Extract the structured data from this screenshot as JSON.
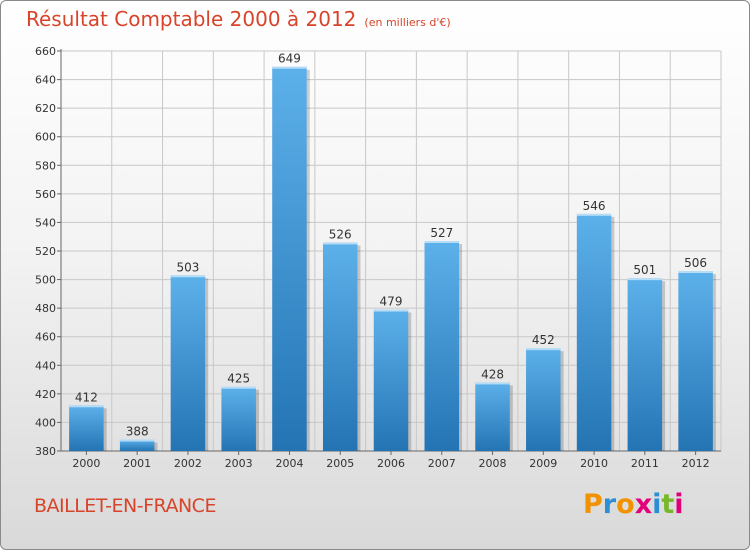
{
  "header": {
    "title": "Résultat Comptable 2000 à 2012",
    "unit": "(en milliers d'€)"
  },
  "footer": {
    "city": "BAILLET-EN-FRANCE",
    "brand": "Proxiti"
  },
  "colors": {
    "title": "#d8442a",
    "bar_top": "#5db1ea",
    "bar_bottom": "#2474b4",
    "grid": "#c8c8c8",
    "brand_letters": [
      "#f39200",
      "#2c8fd6",
      "#f39200",
      "#e2007a",
      "#2c8fd6",
      "#76b82a",
      "#e2007a"
    ]
  },
  "chart_data": {
    "type": "bar",
    "title": "Résultat Comptable 2000 à 2012",
    "subtitle": "(en milliers d'€)",
    "xlabel": "",
    "ylabel": "",
    "categories": [
      "2000",
      "2001",
      "2002",
      "2003",
      "2004",
      "2005",
      "2006",
      "2007",
      "2008",
      "2009",
      "2010",
      "2011",
      "2012"
    ],
    "values": [
      412,
      388,
      503,
      425,
      649,
      526,
      479,
      527,
      428,
      452,
      546,
      501,
      506
    ],
    "ylim": [
      380,
      660
    ],
    "yticks": [
      380,
      400,
      420,
      440,
      460,
      480,
      500,
      520,
      540,
      560,
      580,
      600,
      620,
      640,
      660
    ],
    "grid": true
  }
}
